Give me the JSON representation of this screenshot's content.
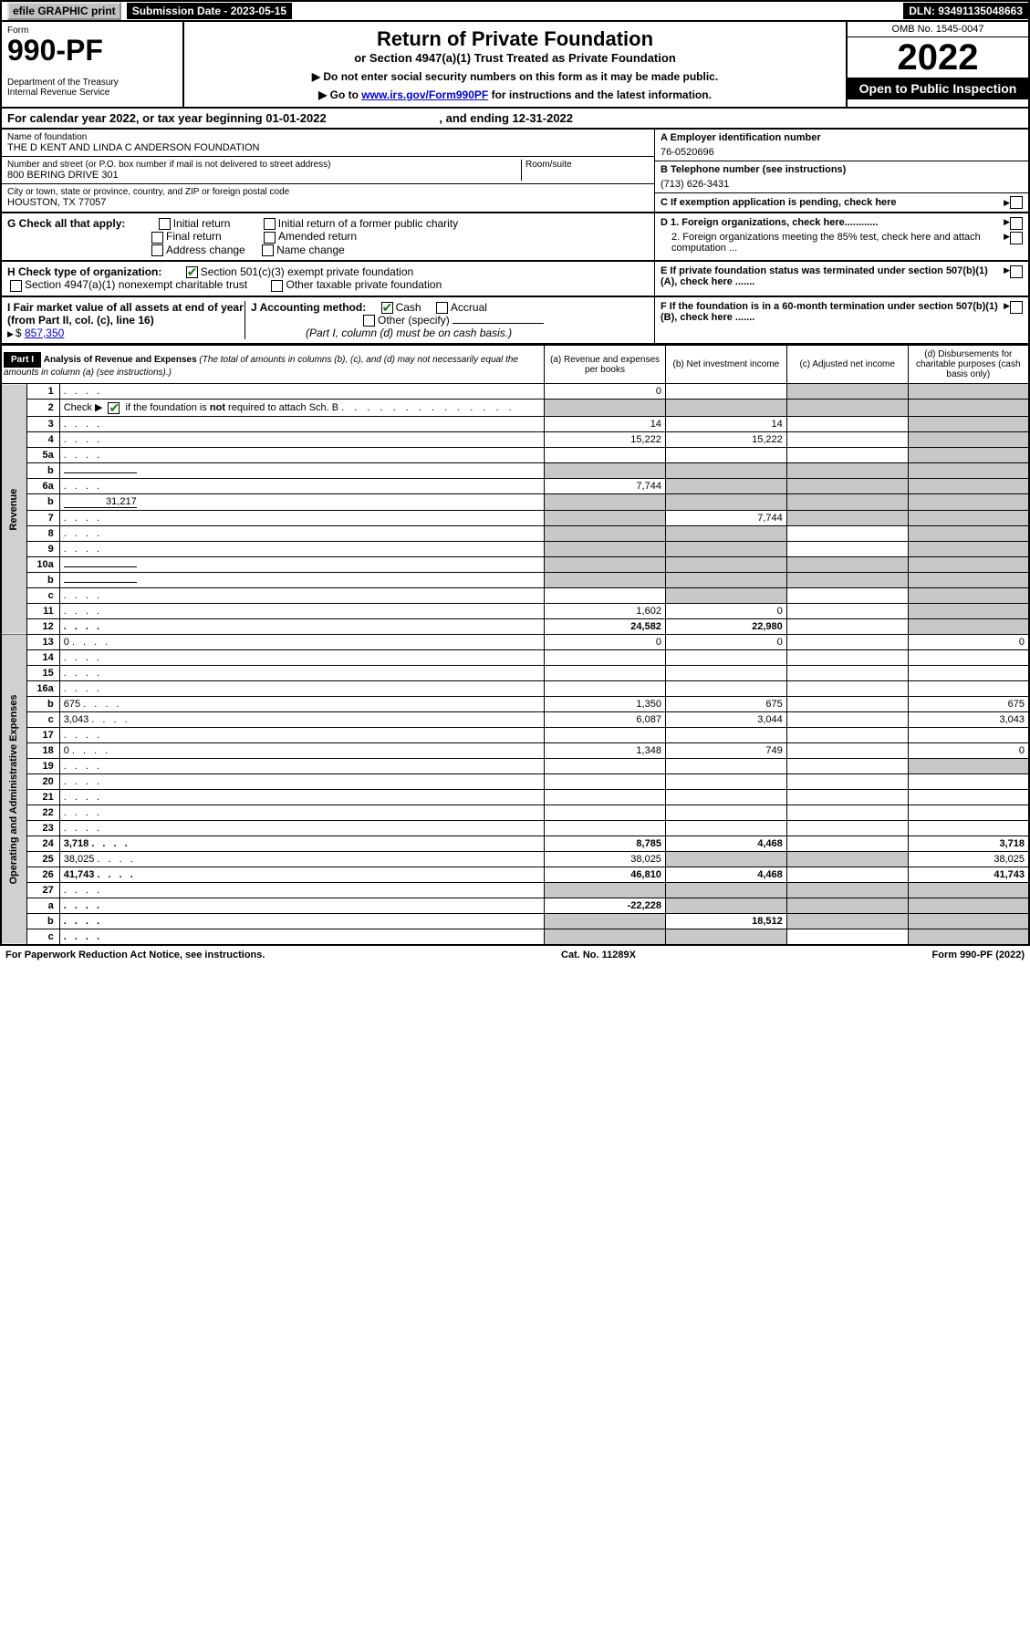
{
  "topbar": {
    "efile": "efile GRAPHIC print",
    "submission": "Submission Date - 2023-05-15",
    "dln": "DLN: 93491135048663"
  },
  "header": {
    "form_label": "Form",
    "form_no": "990-PF",
    "dept": "Department of the Treasury\nInternal Revenue Service",
    "title": "Return of Private Foundation",
    "subtitle": "or Section 4947(a)(1) Trust Treated as Private Foundation",
    "instr1": "▶ Do not enter social security numbers on this form as it may be made public.",
    "instr2_pre": "▶ Go to ",
    "instr2_link": "www.irs.gov/Form990PF",
    "instr2_post": " for instructions and the latest information.",
    "omb": "OMB No. 1545-0047",
    "year": "2022",
    "open": "Open to Public Inspection"
  },
  "calyear": {
    "text": "For calendar year 2022, or tax year beginning 01-01-2022",
    "ending": ", and ending 12-31-2022"
  },
  "info": {
    "name_lbl": "Name of foundation",
    "name": "THE D KENT AND LINDA C ANDERSON FOUNDATION",
    "addr_lbl": "Number and street (or P.O. box number if mail is not delivered to street address)",
    "addr": "800 BERING DRIVE 301",
    "room_lbl": "Room/suite",
    "city_lbl": "City or town, state or province, country, and ZIP or foreign postal code",
    "city": "HOUSTON, TX  77057",
    "a_lbl": "A Employer identification number",
    "a_val": "76-0520696",
    "b_lbl": "B Telephone number (see instructions)",
    "b_val": "(713) 626-3431",
    "c_lbl": "C If exemption application is pending, check here",
    "d1_lbl": "D 1. Foreign organizations, check here............",
    "d2_lbl": "2. Foreign organizations meeting the 85% test, check here and attach computation ...",
    "e_lbl": "E  If private foundation status was terminated under section 507(b)(1)(A), check here .......",
    "f_lbl": "F  If the foundation is in a 60-month termination under section 507(b)(1)(B), check here .......",
    "g_lbl": "G Check all that apply:",
    "g_opts": [
      "Initial return",
      "Final return",
      "Address change",
      "Initial return of a former public charity",
      "Amended return",
      "Name change"
    ],
    "h_lbl": "H Check type of organization:",
    "h1": "Section 501(c)(3) exempt private foundation",
    "h2": "Section 4947(a)(1) nonexempt charitable trust",
    "h3": "Other taxable private foundation",
    "i_lbl": "I Fair market value of all assets at end of year (from Part II, col. (c), line 16)",
    "i_val": "857,350",
    "j_lbl": "J Accounting method:",
    "j_cash": "Cash",
    "j_accrual": "Accrual",
    "j_other": "Other (specify)",
    "j_note": "(Part I, column (d) must be on cash basis.)"
  },
  "part1": {
    "hdr": "Part I",
    "title": "Analysis of Revenue and Expenses",
    "note": "(The total of amounts in columns (b), (c), and (d) may not necessarily equal the amounts in column (a) (see instructions).)",
    "col_a": "(a)  Revenue and expenses per books",
    "col_b": "(b)  Net investment income",
    "col_c": "(c)  Adjusted net income",
    "col_d": "(d)  Disbursements for charitable purposes (cash basis only)"
  },
  "side": {
    "rev": "Revenue",
    "exp": "Operating and Administrative Expenses"
  },
  "rows": [
    {
      "n": "1",
      "d": "",
      "a": "0",
      "b": "",
      "c": "",
      "c_sh": true,
      "d_sh": true
    },
    {
      "n": "2",
      "d": "",
      "a": "",
      "b": "",
      "c": "",
      "a_sh": true,
      "b_sh": true,
      "c_sh": true,
      "d_sh": true,
      "has_check": true
    },
    {
      "n": "3",
      "d": "",
      "a": "14",
      "b": "14",
      "c": "",
      "d_sh": true
    },
    {
      "n": "4",
      "d": "",
      "a": "15,222",
      "b": "15,222",
      "c": "",
      "d_sh": true
    },
    {
      "n": "5a",
      "d": "",
      "a": "",
      "b": "",
      "c": "",
      "d_sh": true
    },
    {
      "n": "b",
      "d": "",
      "a": "",
      "b": "",
      "c": "",
      "a_sh": true,
      "b_sh": true,
      "c_sh": true,
      "d_sh": true,
      "inline": true
    },
    {
      "n": "6a",
      "d": "",
      "a": "7,744",
      "b": "",
      "c": "",
      "b_sh": true,
      "c_sh": true,
      "d_sh": true
    },
    {
      "n": "b",
      "d": "",
      "a": "",
      "b": "",
      "c": "",
      "a_sh": true,
      "b_sh": true,
      "c_sh": true,
      "d_sh": true,
      "inline": true,
      "inline_val": "31,217"
    },
    {
      "n": "7",
      "d": "",
      "a": "",
      "b": "7,744",
      "c": "",
      "a_sh": true,
      "c_sh": true,
      "d_sh": true
    },
    {
      "n": "8",
      "d": "",
      "a": "",
      "b": "",
      "c": "",
      "a_sh": true,
      "b_sh": true,
      "d_sh": true
    },
    {
      "n": "9",
      "d": "",
      "a": "",
      "b": "",
      "c": "",
      "a_sh": true,
      "b_sh": true,
      "d_sh": true
    },
    {
      "n": "10a",
      "d": "",
      "a": "",
      "b": "",
      "c": "",
      "a_sh": true,
      "b_sh": true,
      "c_sh": true,
      "d_sh": true,
      "inline": true
    },
    {
      "n": "b",
      "d": "",
      "a": "",
      "b": "",
      "c": "",
      "a_sh": true,
      "b_sh": true,
      "c_sh": true,
      "d_sh": true,
      "inline": true
    },
    {
      "n": "c",
      "d": "",
      "a": "",
      "b": "",
      "c": "",
      "b_sh": true,
      "d_sh": true
    },
    {
      "n": "11",
      "d": "",
      "a": "1,602",
      "b": "0",
      "c": "",
      "d_sh": true
    },
    {
      "n": "12",
      "d": "",
      "a": "24,582",
      "b": "22,980",
      "c": "",
      "d_sh": true,
      "bold": true
    }
  ],
  "exp_rows": [
    {
      "n": "13",
      "d": "0",
      "a": "0",
      "b": "0",
      "c": ""
    },
    {
      "n": "14",
      "d": "",
      "a": "",
      "b": "",
      "c": ""
    },
    {
      "n": "15",
      "d": "",
      "a": "",
      "b": "",
      "c": ""
    },
    {
      "n": "16a",
      "d": "",
      "a": "",
      "b": "",
      "c": ""
    },
    {
      "n": "b",
      "d": "675",
      "a": "1,350",
      "b": "675",
      "c": ""
    },
    {
      "n": "c",
      "d": "3,043",
      "a": "6,087",
      "b": "3,044",
      "c": ""
    },
    {
      "n": "17",
      "d": "",
      "a": "",
      "b": "",
      "c": ""
    },
    {
      "n": "18",
      "d": "0",
      "a": "1,348",
      "b": "749",
      "c": ""
    },
    {
      "n": "19",
      "d": "",
      "a": "",
      "b": "",
      "c": "",
      "d_sh": true
    },
    {
      "n": "20",
      "d": "",
      "a": "",
      "b": "",
      "c": ""
    },
    {
      "n": "21",
      "d": "",
      "a": "",
      "b": "",
      "c": ""
    },
    {
      "n": "22",
      "d": "",
      "a": "",
      "b": "",
      "c": ""
    },
    {
      "n": "23",
      "d": "",
      "a": "",
      "b": "",
      "c": ""
    },
    {
      "n": "24",
      "d": "3,718",
      "a": "8,785",
      "b": "4,468",
      "c": "",
      "bold": true
    },
    {
      "n": "25",
      "d": "38,025",
      "a": "38,025",
      "b": "",
      "c": "",
      "b_sh": true,
      "c_sh": true
    },
    {
      "n": "26",
      "d": "41,743",
      "a": "46,810",
      "b": "4,468",
      "c": "",
      "bold": true
    },
    {
      "n": "27",
      "d": "",
      "a": "",
      "b": "",
      "c": "",
      "a_sh": true,
      "b_sh": true,
      "c_sh": true,
      "d_sh": true
    },
    {
      "n": "a",
      "d": "",
      "a": "-22,228",
      "b": "",
      "c": "",
      "b_sh": true,
      "c_sh": true,
      "d_sh": true,
      "bold": true
    },
    {
      "n": "b",
      "d": "",
      "a": "",
      "b": "18,512",
      "c": "",
      "a_sh": true,
      "c_sh": true,
      "d_sh": true,
      "bold": true
    },
    {
      "n": "c",
      "d": "",
      "a": "",
      "b": "",
      "c": "",
      "a_sh": true,
      "b_sh": true,
      "d_sh": true,
      "bold": true
    }
  ],
  "footer": {
    "left": "For Paperwork Reduction Act Notice, see instructions.",
    "mid": "Cat. No. 11289X",
    "right": "Form 990-PF (2022)"
  }
}
